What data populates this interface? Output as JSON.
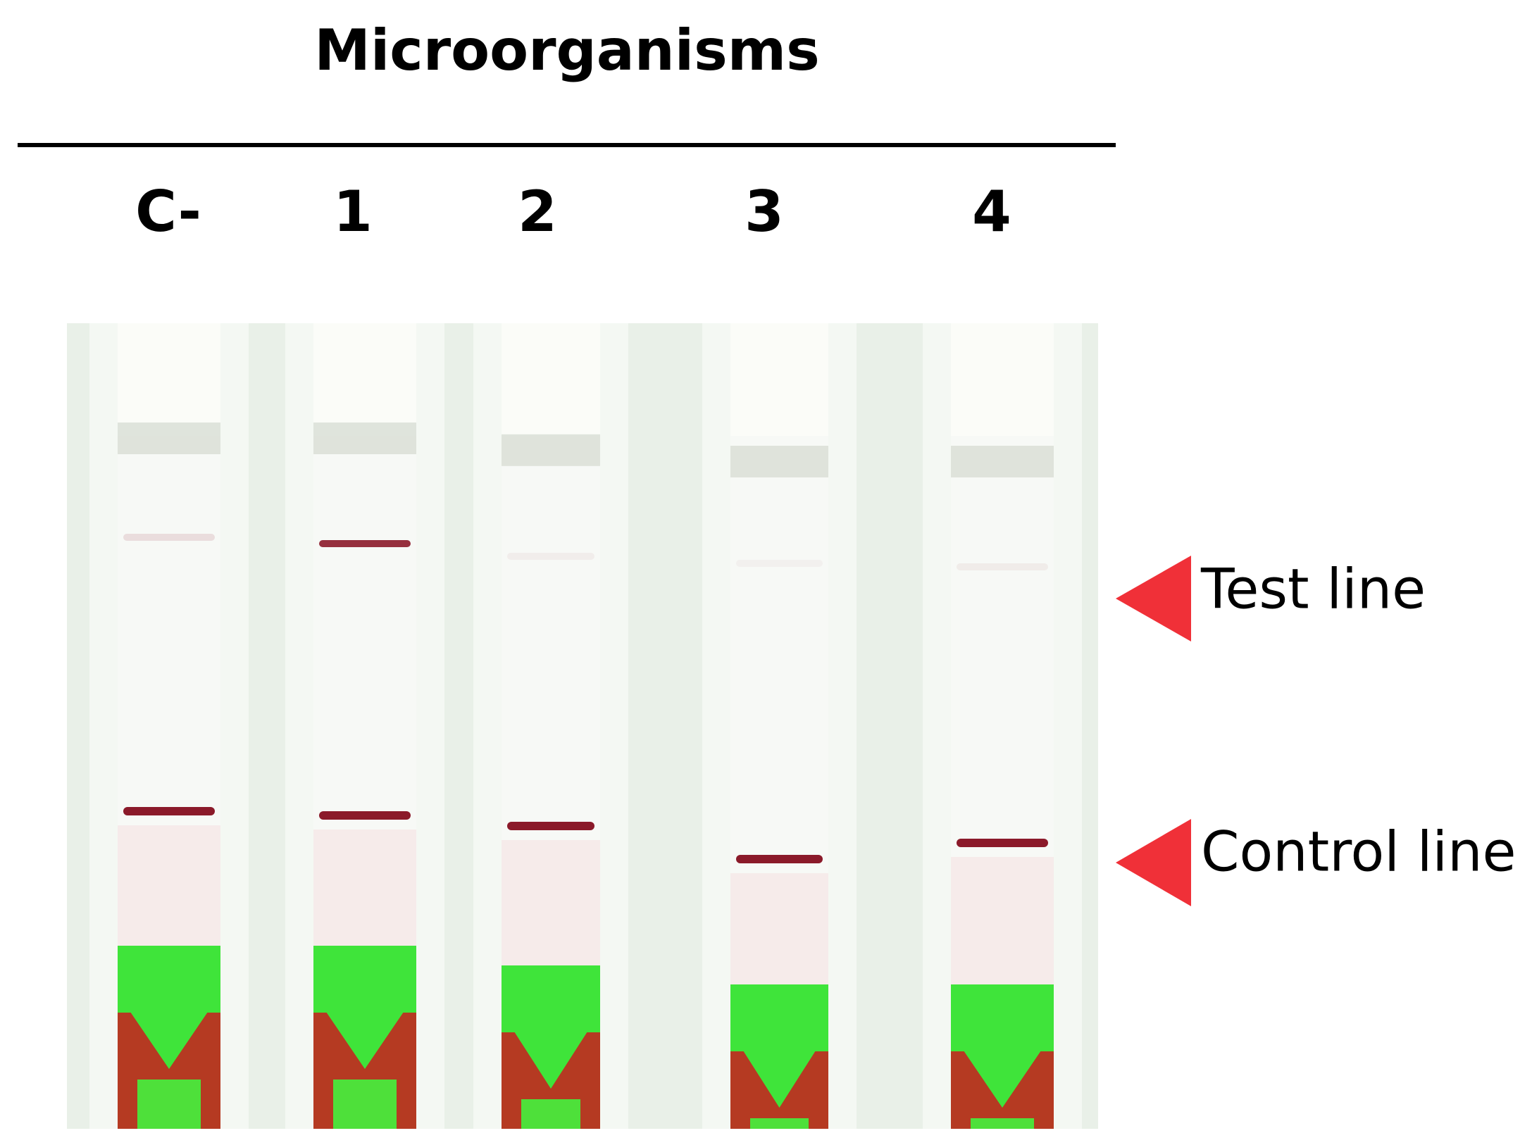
{
  "title": "Microorganisms",
  "lanes": [
    "C-",
    "1",
    "2",
    "3",
    "4"
  ],
  "annotations": {
    "test_line": "Test line",
    "control_line": "Control line"
  }
}
